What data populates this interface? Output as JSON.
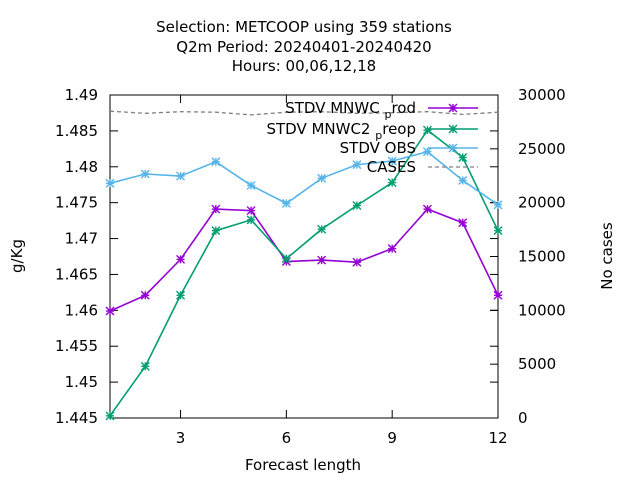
{
  "chart_data": {
    "type": "line",
    "title_lines": [
      "Selection: METCOOP using   359 stations",
      "Q2m   Period: 20240401-20240420",
      "Hours:  00,06,12,18"
    ],
    "xlabel": "Forecast length",
    "ylabel": "g/Kg",
    "y2label": "No cases",
    "xlim": [
      1,
      12
    ],
    "ylim": [
      1.445,
      1.49
    ],
    "y2lim": [
      0,
      30000
    ],
    "x_ticks": [
      3,
      6,
      9,
      12
    ],
    "y_ticks": [
      1.445,
      1.45,
      1.455,
      1.46,
      1.465,
      1.47,
      1.475,
      1.48,
      1.485,
      1.49
    ],
    "y_tick_labels": [
      "1.445",
      "1.45",
      "1.455",
      "1.46",
      "1.465",
      "1.47",
      "1.475",
      "1.48",
      "1.485",
      "1.49"
    ],
    "y2_ticks": [
      0,
      5000,
      10000,
      15000,
      20000,
      25000,
      30000
    ],
    "grid": false,
    "legend_position": "top-right",
    "x": [
      1,
      2,
      3,
      4,
      5,
      6,
      7,
      8,
      9,
      10,
      11,
      12
    ],
    "series": [
      {
        "name": "STDV MNWC_prod",
        "legend_main": "STDV MNWC",
        "legend_sub": "p",
        "legend_tail": "rod",
        "color": "#9400d3",
        "axis": "y1",
        "marker": true,
        "dash": false,
        "values": [
          1.4599,
          1.4621,
          1.4671,
          1.4741,
          1.4739,
          1.4668,
          1.467,
          1.4667,
          1.4686,
          1.4741,
          1.4722,
          1.4621
        ]
      },
      {
        "name": "STDV MNWC2_preop",
        "legend_main": "STDV MNWC2",
        "legend_sub": "p",
        "legend_tail": "reop",
        "color": "#009e73",
        "axis": "y1",
        "marker": true,
        "dash": false,
        "values": [
          1.4453,
          1.4522,
          1.4621,
          1.4711,
          1.4726,
          1.4672,
          1.4713,
          1.4746,
          1.4778,
          1.4851,
          1.4813,
          1.4711
        ]
      },
      {
        "name": "STDV OBS",
        "legend_main": "STDV OBS",
        "legend_sub": "",
        "legend_tail": "",
        "color": "#56b4e9",
        "axis": "y1",
        "marker": true,
        "dash": false,
        "values": [
          1.4777,
          1.479,
          1.4787,
          1.4807,
          1.4774,
          1.4749,
          1.4784,
          1.4803,
          1.4808,
          1.4821,
          1.4781,
          1.4747
        ]
      },
      {
        "name": "CASES",
        "legend_main": "CASES",
        "legend_sub": "",
        "legend_tail": "",
        "color": "#808080",
        "axis": "y2",
        "marker": false,
        "dash": true,
        "values": [
          28500,
          28300,
          28450,
          28400,
          28150,
          28400,
          28450,
          28300,
          28350,
          28450,
          28200,
          28400
        ]
      }
    ]
  }
}
